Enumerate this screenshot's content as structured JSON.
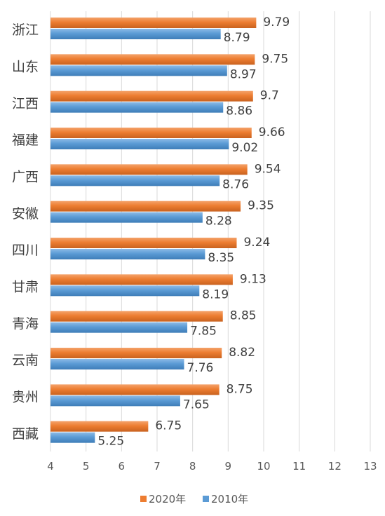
{
  "chart_data": {
    "type": "bar",
    "orientation": "horizontal",
    "categories": [
      "浙江",
      "山东",
      "江西",
      "福建",
      "广西",
      "安徽",
      "四川",
      "甘肃",
      "青海",
      "云南",
      "贵州",
      "西藏"
    ],
    "series": [
      {
        "name": "2020年",
        "color": "#ED7D31",
        "values": [
          9.79,
          9.75,
          9.7,
          9.66,
          9.54,
          9.35,
          9.24,
          9.13,
          8.85,
          8.82,
          8.75,
          6.75
        ]
      },
      {
        "name": "2010年",
        "color": "#5B9BD5",
        "values": [
          8.79,
          8.97,
          8.86,
          9.02,
          8.76,
          8.28,
          8.35,
          8.19,
          7.85,
          7.76,
          7.65,
          5.25
        ]
      }
    ],
    "xlim": [
      4,
      13
    ],
    "xticks": [
      4,
      5,
      6,
      7,
      8,
      9,
      10,
      11,
      12,
      13
    ],
    "grid": true,
    "legend_position": "bottom"
  }
}
